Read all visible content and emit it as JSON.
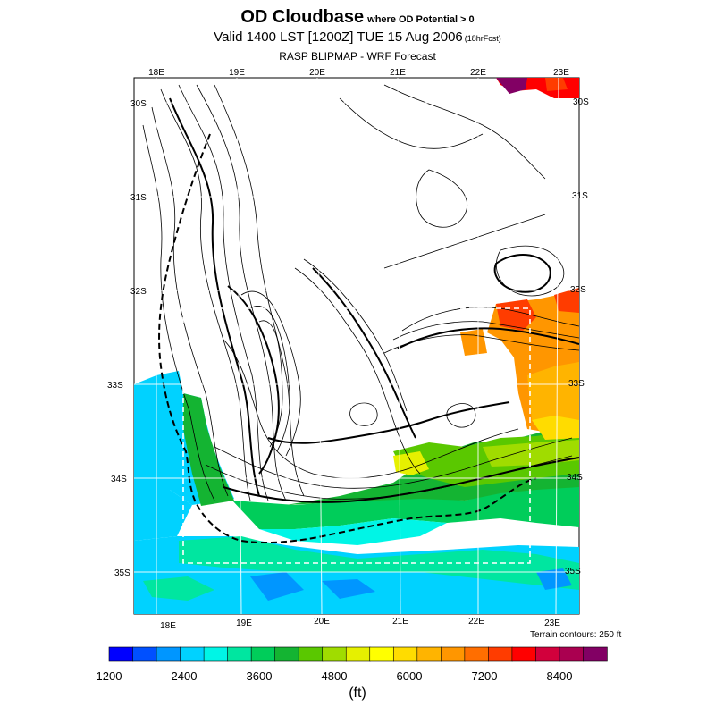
{
  "title": {
    "main": "OD Cloudbase",
    "qualifier": "where OD Potential > 0",
    "valid": "Valid 1400 LST [1200Z] TUE 15 Aug 2006",
    "forecast_hour": "(18hrFcst)",
    "source": "RASP BLIPMAP - WRF Forecast"
  },
  "axes": {
    "lon_labels": [
      "18E",
      "19E",
      "20E",
      "21E",
      "22E",
      "23E"
    ],
    "lat_labels": [
      "30S",
      "31S",
      "32S",
      "33S",
      "34S",
      "35S"
    ]
  },
  "terrain_note": "Terrain contours: 250 ft",
  "colorbar": {
    "colors": [
      "#0000ff",
      "#0050ff",
      "#0096ff",
      "#00d2ff",
      "#00f5e6",
      "#00e6a0",
      "#00cd5a",
      "#14b432",
      "#5ac800",
      "#a0dc00",
      "#e6f000",
      "#ffff00",
      "#ffdc00",
      "#ffb400",
      "#ff9600",
      "#ff6e00",
      "#ff3c00",
      "#ff0000",
      "#d2003c",
      "#aa0050",
      "#820064"
    ],
    "tick_labels": [
      "1200",
      "2400",
      "3600",
      "4800",
      "6000",
      "7200",
      "8400"
    ],
    "unit": "(ft)"
  }
}
